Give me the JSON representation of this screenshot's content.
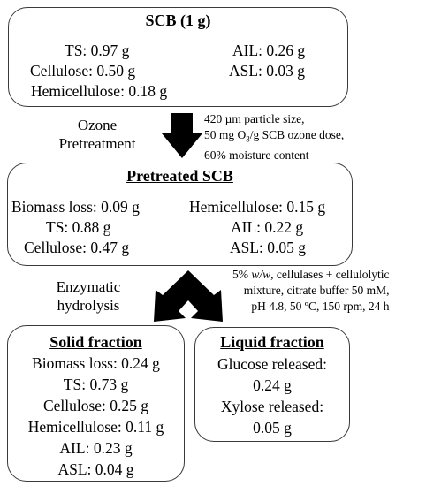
{
  "scb": {
    "title": "SCB (1 g)",
    "ts": "TS: 0.97 g",
    "ail": "AIL: 0.26 g",
    "cellulose": "Cellulose: 0.50 g",
    "asl": "ASL: 0.03 g",
    "hemicellulose": "Hemicellulose: 0.18 g"
  },
  "ozone": {
    "label_line1": "Ozone",
    "label_line2": "Pretreatment",
    "cond_line1": "420 µm particle size,",
    "cond_line2_pre": "50 mg O",
    "cond_line2_sub": "3",
    "cond_line2_post": "/g SCB ozone dose,",
    "cond_line3": "60% moisture content"
  },
  "pretreated": {
    "title": "Pretreated SCB",
    "biomass_loss": "Biomass loss: 0.09 g",
    "hemicellulose": "Hemicellulose: 0.15 g",
    "ts": "TS: 0.88 g",
    "ail": "AIL: 0.22 g",
    "cellulose": "Cellulose: 0.47 g",
    "asl": "ASL: 0.05 g"
  },
  "enzymatic": {
    "label_line1": "Enzymatic",
    "label_line2": "hydrolysis",
    "cond_line1_pre": "5% ",
    "cond_line1_em": "w/w",
    "cond_line1_post": ", cellulases + cellulolytic",
    "cond_line2": "mixture, citrate buffer 50 mM,",
    "cond_line3": "pH 4.8, 50 ºC, 150 rpm, 24 h"
  },
  "solid": {
    "title": "Solid fraction",
    "biomass_loss": "Biomass loss: 0.24 g",
    "ts": "TS: 0.73 g",
    "cellulose": "Cellulose: 0.25 g",
    "hemicellulose": "Hemicellulose: 0.11 g",
    "ail": "AIL: 0.23 g",
    "asl": "ASL: 0.04 g"
  },
  "liquid": {
    "title": "Liquid fraction",
    "glucose_label": "Glucose released:",
    "glucose_value": "0.24 g",
    "xylose_label": "Xylose released:",
    "xylose_value": "0.05 g"
  }
}
